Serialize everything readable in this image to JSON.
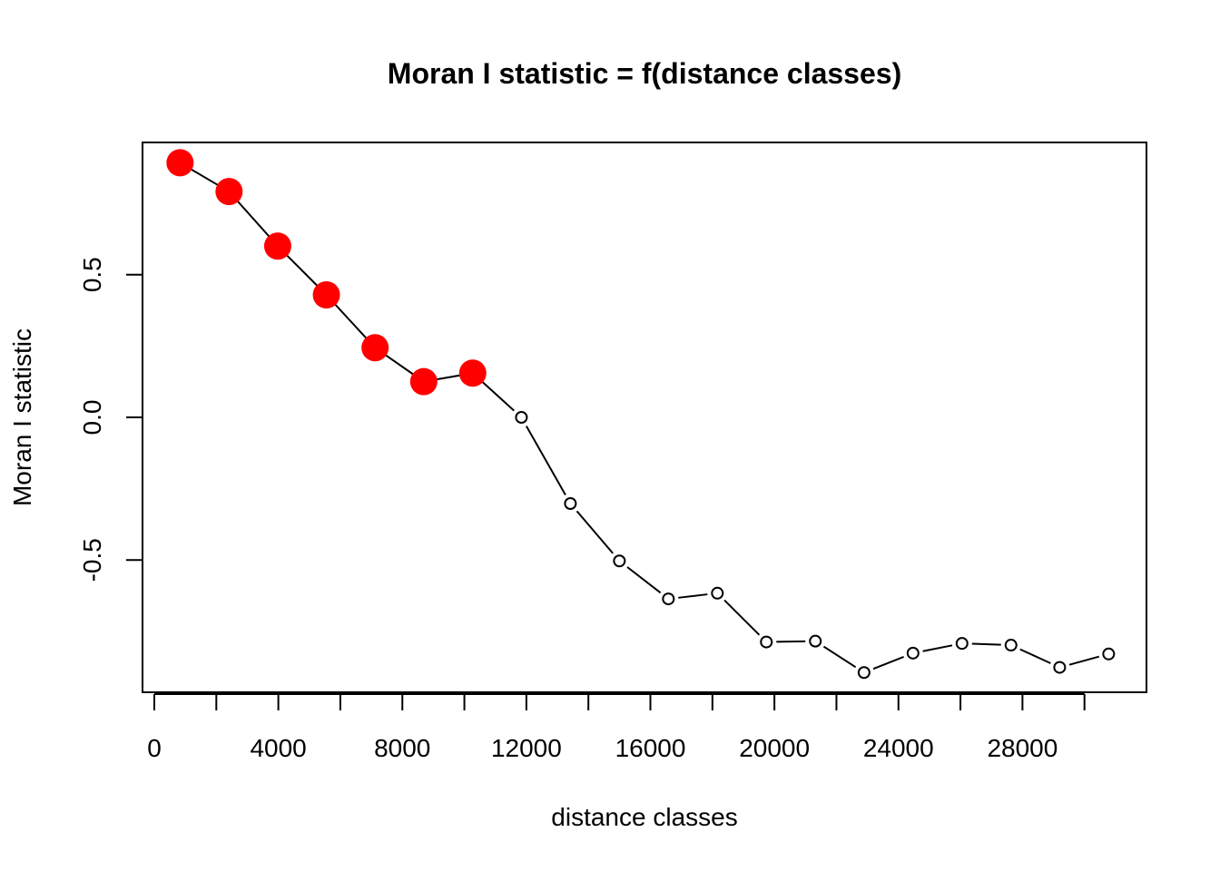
{
  "chart_data": {
    "type": "line",
    "title": "Moran I statistic = f(distance classes)",
    "xlabel": "distance classes",
    "ylabel": "Moran I statistic",
    "xlim": [
      0,
      30000
    ],
    "ylim": [
      -0.95,
      0.95
    ],
    "x_ticks": [
      0,
      2000,
      4000,
      6000,
      8000,
      10000,
      12000,
      14000,
      16000,
      18000,
      20000,
      22000,
      24000,
      26000,
      28000,
      30000
    ],
    "x_tick_labels": [
      "0",
      "",
      "4000",
      "",
      "8000",
      "",
      "12000",
      "",
      "16000",
      "",
      "20000",
      "",
      "24000",
      "",
      "28000",
      ""
    ],
    "y_ticks": [
      -0.5,
      0.0,
      0.5
    ],
    "y_tick_labels": [
      "-0.5",
      "0.0",
      "0.5"
    ],
    "grid": false,
    "legend": "none",
    "series": [
      {
        "name": "Moran I",
        "line_color": "#000000",
        "x": [
          830,
          2410,
          3980,
          5550,
          7120,
          8690,
          10270,
          11840,
          13420,
          15000,
          16580,
          18160,
          19740,
          21320,
          22890,
          24470,
          26050,
          27630,
          29200,
          30780
        ],
        "y": [
          0.892,
          0.791,
          0.6,
          0.429,
          0.244,
          0.125,
          0.155,
          0.0,
          -0.302,
          -0.503,
          -0.636,
          -0.616,
          -0.787,
          -0.784,
          -0.894,
          -0.826,
          -0.792,
          -0.798,
          -0.876,
          -0.829
        ],
        "significant": [
          true,
          true,
          true,
          true,
          true,
          true,
          true,
          false,
          false,
          false,
          false,
          false,
          false,
          false,
          false,
          false,
          false,
          false,
          false,
          false
        ]
      }
    ],
    "colors": {
      "significant_point": "#ff0000",
      "nonsignificant_point": "#000000",
      "axis": "#000000"
    }
  }
}
